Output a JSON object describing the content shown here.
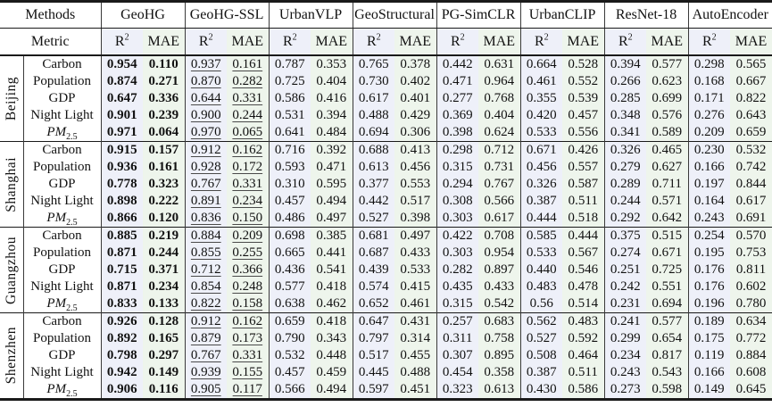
{
  "table": {
    "methods_header_label": "Methods",
    "metric_header_label": "Metric",
    "methods": [
      "GeoHG",
      "GeoHG-SSL",
      "UrbanVLP",
      "GeoStructural",
      "PG-SimCLR",
      "UrbanCLIP",
      "ResNet-18",
      "AutoEncoder"
    ],
    "metrics": [
      "R2",
      "MAE"
    ],
    "emphasis": {
      "bold_method": "GeoHG",
      "underline_method": "GeoHG-SSL"
    },
    "groups": [
      {
        "city": "Beijing",
        "rows": [
          {
            "indicator": "Carbon",
            "values": [
              "0.954",
              "0.110",
              "0.937",
              "0.161",
              "0.787",
              "0.353",
              "0.765",
              "0.378",
              "0.442",
              "0.631",
              "0.664",
              "0.528",
              "0.394",
              "0.577",
              "0.298",
              "0.565"
            ]
          },
          {
            "indicator": "Population",
            "values": [
              "0.874",
              "0.271",
              "0.870",
              "0.282",
              "0.725",
              "0.404",
              "0.730",
              "0.402",
              "0.471",
              "0.964",
              "0.461",
              "0.552",
              "0.266",
              "0.623",
              "0.168",
              "0.667"
            ]
          },
          {
            "indicator": "GDP",
            "values": [
              "0.647",
              "0.336",
              "0.644",
              "0.331",
              "0.586",
              "0.416",
              "0.617",
              "0.401",
              "0.277",
              "0.768",
              "0.355",
              "0.539",
              "0.285",
              "0.699",
              "0.171",
              "0.822"
            ]
          },
          {
            "indicator": "Night Light",
            "values": [
              "0.901",
              "0.239",
              "0.900",
              "0.244",
              "0.531",
              "0.394",
              "0.488",
              "0.429",
              "0.369",
              "0.404",
              "0.420",
              "0.457",
              "0.348",
              "0.576",
              "0.276",
              "0.643"
            ]
          },
          {
            "indicator": "PM2.5",
            "values": [
              "0.971",
              "0.064",
              "0.970",
              "0.065",
              "0.641",
              "0.484",
              "0.694",
              "0.306",
              "0.398",
              "0.624",
              "0.533",
              "0.556",
              "0.341",
              "0.589",
              "0.209",
              "0.659"
            ]
          }
        ]
      },
      {
        "city": "Shanghai",
        "rows": [
          {
            "indicator": "Carbon",
            "values": [
              "0.915",
              "0.157",
              "0.912",
              "0.162",
              "0.716",
              "0.392",
              "0.688",
              "0.413",
              "0.298",
              "0.712",
              "0.671",
              "0.426",
              "0.326",
              "0.465",
              "0.230",
              "0.532"
            ]
          },
          {
            "indicator": "Population",
            "values": [
              "0.936",
              "0.161",
              "0.928",
              "0.172",
              "0.593",
              "0.471",
              "0.613",
              "0.456",
              "0.315",
              "0.731",
              "0.456",
              "0.557",
              "0.279",
              "0.627",
              "0.166",
              "0.742"
            ]
          },
          {
            "indicator": "GDP",
            "values": [
              "0.778",
              "0.323",
              "0.767",
              "0.331",
              "0.310",
              "0.595",
              "0.377",
              "0.553",
              "0.294",
              "0.767",
              "0.326",
              "0.587",
              "0.289",
              "0.711",
              "0.197",
              "0.844"
            ]
          },
          {
            "indicator": "Night Light",
            "values": [
              "0.898",
              "0.222",
              "0.891",
              "0.234",
              "0.457",
              "0.494",
              "0.442",
              "0.517",
              "0.308",
              "0.566",
              "0.387",
              "0.511",
              "0.244",
              "0.571",
              "0.164",
              "0.617"
            ]
          },
          {
            "indicator": "PM2.5",
            "values": [
              "0.866",
              "0.120",
              "0.836",
              "0.150",
              "0.486",
              "0.497",
              "0.527",
              "0.398",
              "0.303",
              "0.617",
              "0.444",
              "0.518",
              "0.292",
              "0.642",
              "0.243",
              "0.691"
            ]
          }
        ]
      },
      {
        "city": "Guangzhou",
        "rows": [
          {
            "indicator": "Carbon",
            "values": [
              "0.885",
              "0.219",
              "0.884",
              "0.209",
              "0.698",
              "0.385",
              "0.681",
              "0.497",
              "0.422",
              "0.708",
              "0.585",
              "0.444",
              "0.375",
              "0.515",
              "0.254",
              "0.570"
            ]
          },
          {
            "indicator": "Population",
            "values": [
              "0.871",
              "0.244",
              "0.855",
              "0.255",
              "0.665",
              "0.441",
              "0.687",
              "0.433",
              "0.303",
              "0.954",
              "0.533",
              "0.567",
              "0.274",
              "0.671",
              "0.195",
              "0.753"
            ]
          },
          {
            "indicator": "GDP",
            "values": [
              "0.715",
              "0.371",
              "0.712",
              "0.366",
              "0.436",
              "0.541",
              "0.439",
              "0.533",
              "0.282",
              "0.897",
              "0.440",
              "0.546",
              "0.251",
              "0.725",
              "0.176",
              "0.811"
            ]
          },
          {
            "indicator": "Night Light",
            "values": [
              "0.871",
              "0.234",
              "0.854",
              "0.248",
              "0.577",
              "0.418",
              "0.574",
              "0.415",
              "0.435",
              "0.433",
              "0.483",
              "0.478",
              "0.242",
              "0.551",
              "0.176",
              "0.602"
            ]
          },
          {
            "indicator": "PM2.5",
            "values": [
              "0.833",
              "0.133",
              "0.822",
              "0.158",
              "0.638",
              "0.462",
              "0.652",
              "0.461",
              "0.315",
              "0.542",
              "0.56",
              "0.514",
              "0.231",
              "0.694",
              "0.196",
              "0.780"
            ]
          }
        ]
      },
      {
        "city": "Shenzhen",
        "rows": [
          {
            "indicator": "Carbon",
            "values": [
              "0.926",
              "0.128",
              "0.912",
              "0.162",
              "0.659",
              "0.418",
              "0.647",
              "0.431",
              "0.257",
              "0.683",
              "0.562",
              "0.483",
              "0.241",
              "0.577",
              "0.189",
              "0.634"
            ]
          },
          {
            "indicator": "Population",
            "values": [
              "0.892",
              "0.165",
              "0.879",
              "0.173",
              "0.790",
              "0.343",
              "0.797",
              "0.314",
              "0.311",
              "0.758",
              "0.527",
              "0.592",
              "0.299",
              "0.654",
              "0.175",
              "0.772"
            ]
          },
          {
            "indicator": "GDP",
            "values": [
              "0.798",
              "0.297",
              "0.767",
              "0.331",
              "0.532",
              "0.448",
              "0.517",
              "0.455",
              "0.307",
              "0.895",
              "0.508",
              "0.464",
              "0.234",
              "0.817",
              "0.119",
              "0.884"
            ]
          },
          {
            "indicator": "Night Light",
            "values": [
              "0.942",
              "0.149",
              "0.939",
              "0.155",
              "0.457",
              "0.459",
              "0.445",
              "0.488",
              "0.454",
              "0.358",
              "0.387",
              "0.511",
              "0.243",
              "0.543",
              "0.166",
              "0.608"
            ]
          },
          {
            "indicator": "PM2.5",
            "values": [
              "0.906",
              "0.116",
              "0.905",
              "0.117",
              "0.566",
              "0.494",
              "0.597",
              "0.451",
              "0.323",
              "0.613",
              "0.430",
              "0.586",
              "0.273",
              "0.598",
              "0.149",
              "0.645"
            ]
          }
        ]
      }
    ]
  },
  "colors": {
    "r2_column_bg": "#eef0f9",
    "mae_column_bg": "#eef5ec",
    "rule_color": "#1a1a1a"
  }
}
